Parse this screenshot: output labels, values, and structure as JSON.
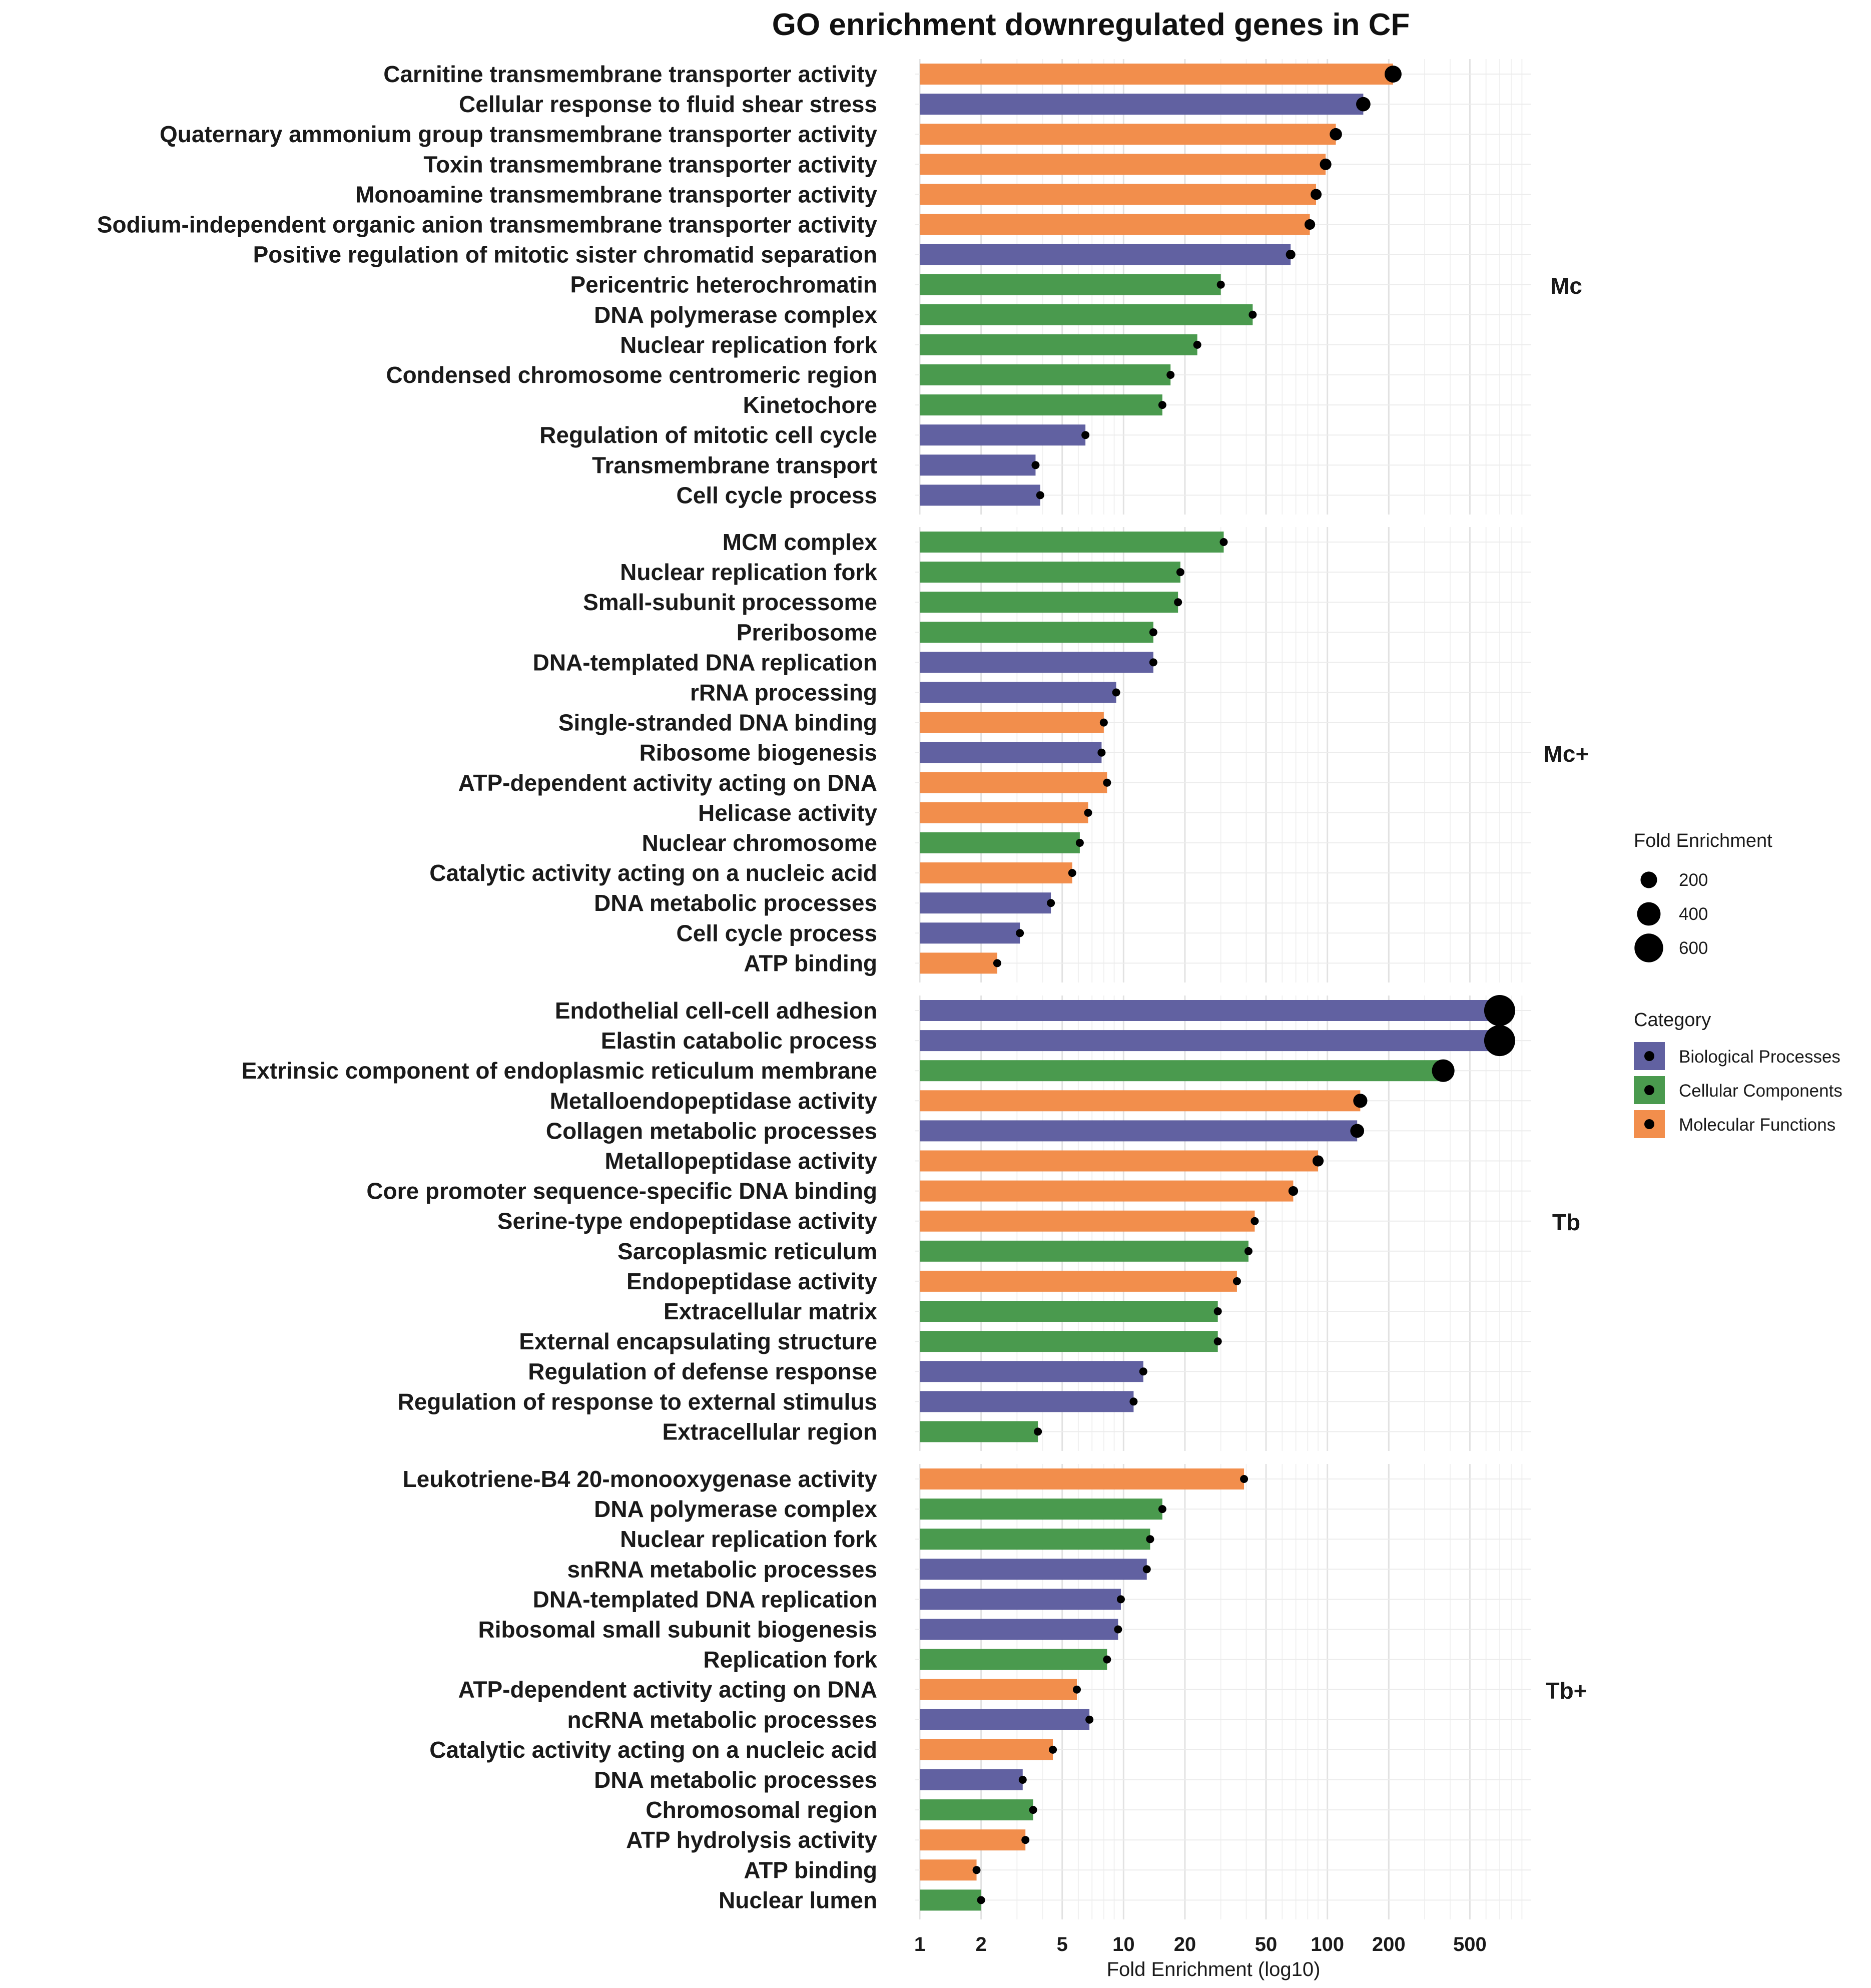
{
  "chart_data": {
    "type": "bar",
    "title": "GO enrichment downregulated genes in CF",
    "xlabel": "Fold Enrichment (log10)",
    "ylabel": "",
    "x_scale": "log10",
    "xlim": [
      1,
      1000
    ],
    "x_ticks": [
      1,
      2,
      5,
      10,
      20,
      50,
      100,
      200,
      500
    ],
    "x_tick_labels": [
      "1",
      "2",
      "5",
      "10",
      "20",
      "50",
      "100",
      "200",
      "500"
    ],
    "grid": true,
    "legend_position": "right",
    "size_legend": {
      "title": "Fold Enrichment",
      "values": [
        200,
        400,
        600
      ],
      "labels": [
        "200",
        "400",
        "600"
      ]
    },
    "category_legend": {
      "title": "Category",
      "items": [
        {
          "key": "BP",
          "label": "Biological Processes",
          "color": "#6161A1"
        },
        {
          "key": "CC",
          "label": "Cellular Components",
          "color": "#4A9A4E"
        },
        {
          "key": "MF",
          "label": "Molecular Functions",
          "color": "#F28E4C"
        }
      ]
    },
    "panels": [
      {
        "name": "Mc",
        "terms": [
          {
            "label": "Carnitine transmembrane transporter activity",
            "category": "MF",
            "value": 210
          },
          {
            "label": "Cellular response to fluid shear stress",
            "category": "BP",
            "value": 150
          },
          {
            "label": "Quaternary ammonium group transmembrane transporter activity",
            "category": "MF",
            "value": 110
          },
          {
            "label": "Toxin transmembrane transporter activity",
            "category": "MF",
            "value": 98
          },
          {
            "label": "Monoamine transmembrane transporter activity",
            "category": "MF",
            "value": 88
          },
          {
            "label": "Sodium-independent organic anion transmembrane transporter activity",
            "category": "MF",
            "value": 82
          },
          {
            "label": "Positive regulation of mitotic sister chromatid separation",
            "category": "BP",
            "value": 66
          },
          {
            "label": "Pericentric heterochromatin",
            "category": "CC",
            "value": 30
          },
          {
            "label": "DNA polymerase complex",
            "category": "CC",
            "value": 43
          },
          {
            "label": "Nuclear replication fork",
            "category": "CC",
            "value": 23
          },
          {
            "label": "Condensed chromosome centromeric region",
            "category": "CC",
            "value": 17
          },
          {
            "label": "Kinetochore",
            "category": "CC",
            "value": 15.5
          },
          {
            "label": "Regulation of mitotic cell cycle",
            "category": "BP",
            "value": 6.5
          },
          {
            "label": "Transmembrane transport",
            "category": "BP",
            "value": 3.7
          },
          {
            "label": "Cell cycle process",
            "category": "BP",
            "value": 3.9
          }
        ]
      },
      {
        "name": "Mc+",
        "terms": [
          {
            "label": "MCM complex",
            "category": "CC",
            "value": 31
          },
          {
            "label": "Nuclear replication fork",
            "category": "CC",
            "value": 19
          },
          {
            "label": "Small-subunit processome",
            "category": "CC",
            "value": 18.5
          },
          {
            "label": "Preribosome",
            "category": "CC",
            "value": 14
          },
          {
            "label": "DNA-templated DNA replication",
            "category": "BP",
            "value": 14
          },
          {
            "label": "rRNA processing",
            "category": "BP",
            "value": 9.2
          },
          {
            "label": "Single-stranded DNA binding",
            "category": "MF",
            "value": 8
          },
          {
            "label": "Ribosome biogenesis",
            "category": "BP",
            "value": 7.8
          },
          {
            "label": "ATP-dependent activity acting on DNA",
            "category": "MF",
            "value": 8.3
          },
          {
            "label": "Helicase activity",
            "category": "MF",
            "value": 6.7
          },
          {
            "label": "Nuclear chromosome",
            "category": "CC",
            "value": 6.1
          },
          {
            "label": "Catalytic activity acting on a nucleic acid",
            "category": "MF",
            "value": 5.6
          },
          {
            "label": "DNA metabolic processes",
            "category": "BP",
            "value": 4.4
          },
          {
            "label": "Cell cycle process",
            "category": "BP",
            "value": 3.1
          },
          {
            "label": "ATP binding",
            "category": "MF",
            "value": 2.4
          }
        ]
      },
      {
        "name": "Tb",
        "terms": [
          {
            "label": "Endothelial cell-cell adhesion",
            "category": "BP",
            "value": 700
          },
          {
            "label": "Elastin catabolic process",
            "category": "BP",
            "value": 700
          },
          {
            "label": "Extrinsic component of endoplasmic reticulum membrane",
            "category": "CC",
            "value": 370
          },
          {
            "label": "Metalloendopeptidase activity",
            "category": "MF",
            "value": 145
          },
          {
            "label": "Collagen metabolic processes",
            "category": "BP",
            "value": 140
          },
          {
            "label": "Metallopeptidase activity",
            "category": "MF",
            "value": 90
          },
          {
            "label": "Core promoter sequence-specific DNA binding",
            "category": "MF",
            "value": 68
          },
          {
            "label": "Serine-type endopeptidase activity",
            "category": "MF",
            "value": 44
          },
          {
            "label": "Sarcoplasmic reticulum",
            "category": "CC",
            "value": 41
          },
          {
            "label": "Endopeptidase activity",
            "category": "MF",
            "value": 36
          },
          {
            "label": "Extracellular matrix",
            "category": "CC",
            "value": 29
          },
          {
            "label": "External encapsulating structure",
            "category": "CC",
            "value": 29
          },
          {
            "label": "Regulation of defense response",
            "category": "BP",
            "value": 12.5
          },
          {
            "label": "Regulation of response to external stimulus",
            "category": "BP",
            "value": 11.2
          },
          {
            "label": "Extracellular region",
            "category": "CC",
            "value": 3.8
          }
        ]
      },
      {
        "name": "Tb+",
        "terms": [
          {
            "label": "Leukotriene-B4 20-monooxygenase activity",
            "category": "MF",
            "value": 39
          },
          {
            "label": "DNA polymerase complex",
            "category": "CC",
            "value": 15.5
          },
          {
            "label": "Nuclear replication fork",
            "category": "CC",
            "value": 13.5
          },
          {
            "label": "snRNA metabolic processes",
            "category": "BP",
            "value": 13
          },
          {
            "label": "DNA-templated DNA replication",
            "category": "BP",
            "value": 9.7
          },
          {
            "label": "Ribosomal small subunit biogenesis",
            "category": "BP",
            "value": 9.4
          },
          {
            "label": "Replication fork",
            "category": "CC",
            "value": 8.3
          },
          {
            "label": "ATP-dependent activity acting on DNA",
            "category": "MF",
            "value": 5.9
          },
          {
            "label": "ncRNA metabolic processes",
            "category": "BP",
            "value": 6.8
          },
          {
            "label": "Catalytic activity acting on a nucleic acid",
            "category": "MF",
            "value": 4.5
          },
          {
            "label": "DNA metabolic processes",
            "category": "BP",
            "value": 3.2
          },
          {
            "label": "Chromosomal region",
            "category": "CC",
            "value": 3.6
          },
          {
            "label": "ATP hydrolysis activity",
            "category": "MF",
            "value": 3.3
          },
          {
            "label": "ATP binding",
            "category": "MF",
            "value": 1.9
          },
          {
            "label": "Nuclear lumen",
            "category": "CC",
            "value": 2.0
          }
        ]
      }
    ]
  }
}
